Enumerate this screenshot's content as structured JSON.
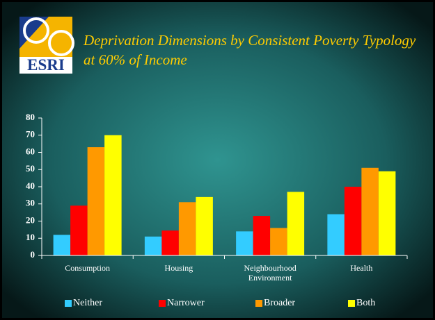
{
  "logo_text": "ESRI",
  "chart_data": {
    "type": "bar",
    "title": "Deprivation Dimensions by Consistent Poverty Typology at 60% of Income",
    "categories": [
      "Consumption",
      "Housing",
      "Neighbourhood Environment",
      "Health"
    ],
    "series": [
      {
        "name": "Neither",
        "color": "#33ccff",
        "values": [
          12,
          11,
          14,
          24
        ]
      },
      {
        "name": "Narrower",
        "color": "#ff0000",
        "values": [
          29,
          14.5,
          23,
          40
        ]
      },
      {
        "name": "Broader",
        "color": "#ff9900",
        "values": [
          63,
          31,
          16,
          51
        ]
      },
      {
        "name": "Both",
        "color": "#ffff00",
        "values": [
          70,
          34,
          37,
          49
        ]
      }
    ],
    "ylim": [
      0,
      80
    ],
    "yticks": [
      0,
      10,
      20,
      30,
      40,
      50,
      60,
      70,
      80
    ],
    "legend": "bottom"
  }
}
